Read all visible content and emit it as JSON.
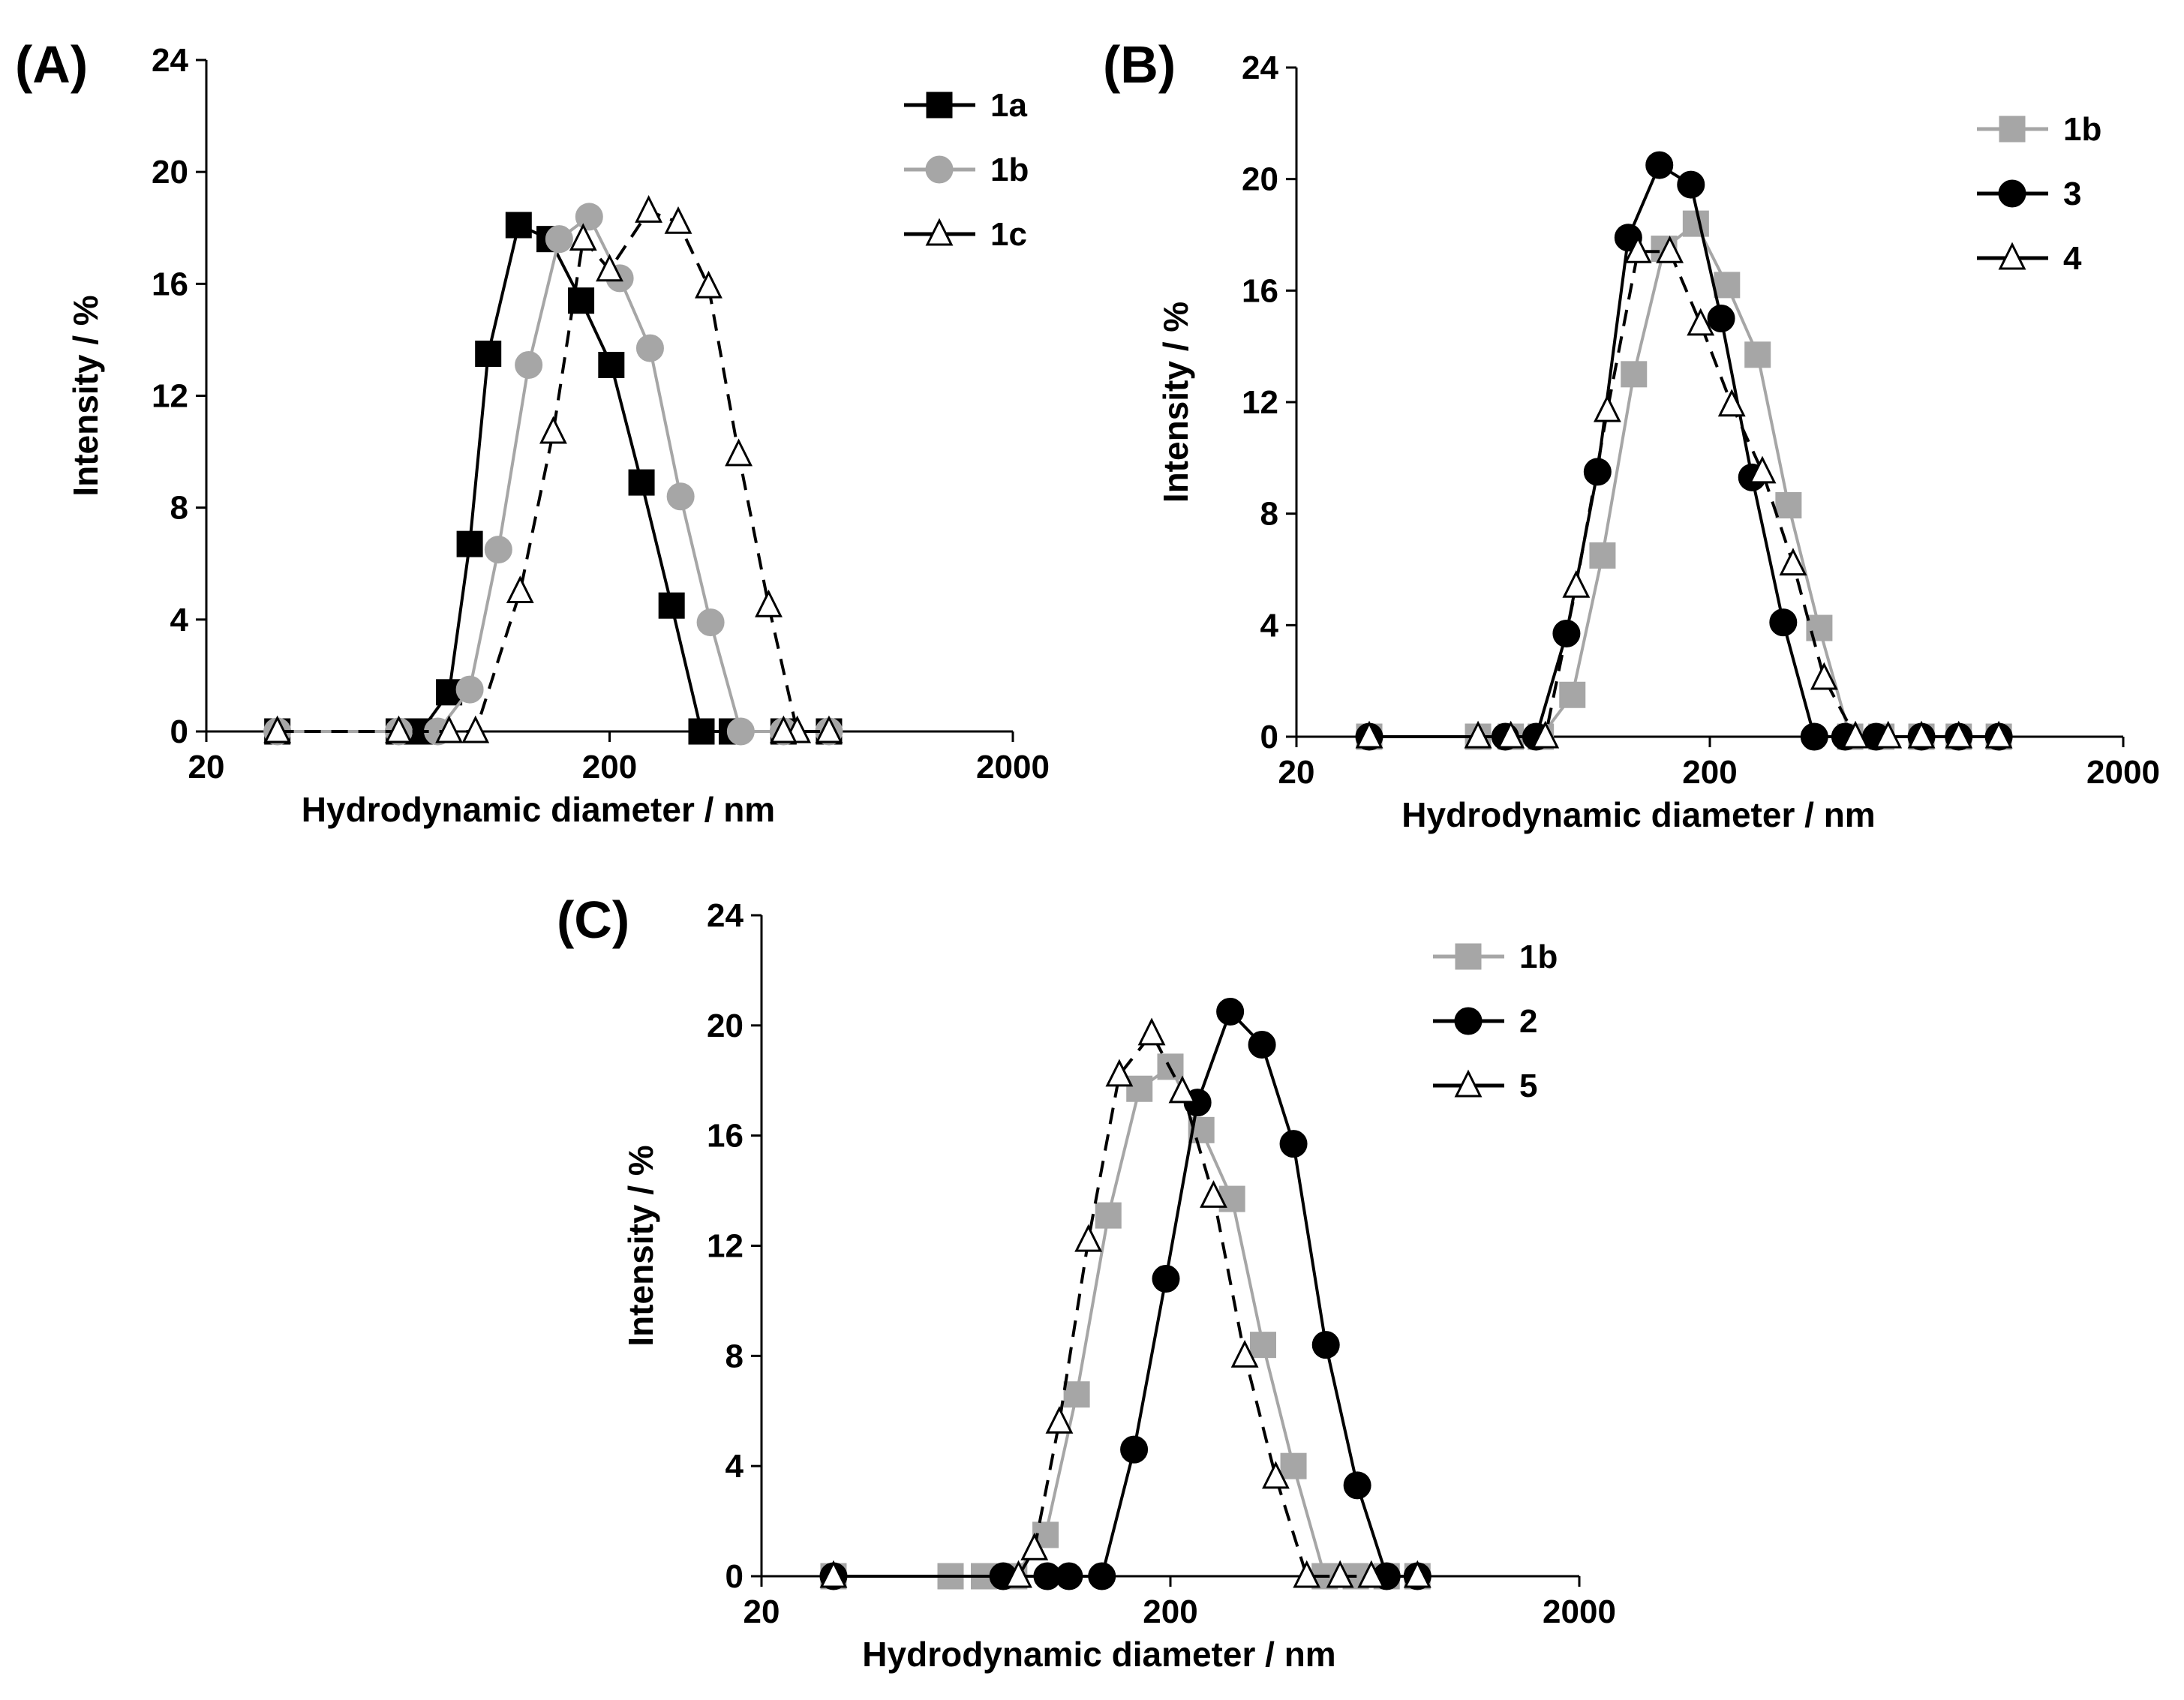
{
  "colors": {
    "black": "#000000",
    "gray": "#a6a6a6",
    "white": "#ffffff"
  },
  "chart_data": [
    {
      "panel": "(A)",
      "type": "line",
      "x_scale": "log",
      "xlabel": "Hydrodynamic  diameter  / nm",
      "ylabel": "Intensity  / %",
      "xlim": [
        20,
        2000
      ],
      "ylim": [
        0,
        24
      ],
      "x_ticks": [
        20,
        200,
        2000
      ],
      "y_ticks": [
        0,
        4,
        8,
        12,
        16,
        20,
        24
      ],
      "grid": false,
      "legend_position": "top-right",
      "series": [
        {
          "name": "1a",
          "color": "#000000",
          "marker": "square",
          "marker_fill": "#000000",
          "dash": "solid",
          "x": [
            30,
            60,
            68,
            80,
            90,
            100,
            119,
            142,
            170,
            202,
            240,
            285,
            338,
            402,
            540,
            700
          ],
          "y": [
            0,
            0,
            0,
            1.4,
            6.7,
            13.5,
            18.1,
            17.6,
            15.4,
            13.1,
            8.9,
            4.5,
            0,
            0,
            0,
            0
          ]
        },
        {
          "name": "1b",
          "color": "#a6a6a6",
          "marker": "circle",
          "marker_fill": "#a6a6a6",
          "dash": "solid",
          "x": [
            30,
            60,
            75,
            90,
            106,
            126,
            150,
            178,
            212,
            252,
            300,
            356,
            423,
            540,
            700
          ],
          "y": [
            0,
            0,
            0,
            1.5,
            6.5,
            13.1,
            17.6,
            18.4,
            16.2,
            13.7,
            8.4,
            3.9,
            0,
            0,
            0
          ]
        },
        {
          "name": "1c",
          "color": "#000000",
          "marker": "triangle",
          "marker_fill": "#ffffff",
          "dash": "dashed",
          "x": [
            30,
            60,
            80,
            93,
            120,
            145,
            172,
            200,
            250,
            296,
            352,
            418,
            496,
            584,
            540,
            700
          ],
          "y": [
            0,
            0,
            0,
            0,
            5.0,
            10.7,
            17.6,
            16.5,
            18.6,
            18.2,
            15.9,
            9.9,
            4.5,
            0,
            0,
            0
          ]
        }
      ]
    },
    {
      "panel": "(B)",
      "type": "line",
      "x_scale": "log",
      "xlabel": "Hydrodynamic  diameter  / nm",
      "ylabel": "Intensity  / %",
      "xlim": [
        20,
        2000
      ],
      "ylim": [
        0,
        24
      ],
      "x_ticks": [
        20,
        200,
        2000
      ],
      "y_ticks": [
        0,
        4,
        8,
        12,
        16,
        20,
        24
      ],
      "grid": false,
      "legend_position": "top-right",
      "series": [
        {
          "name": "1b",
          "color": "#a6a6a6",
          "marker": "square",
          "marker_fill": "#a6a6a6",
          "dash": "solid",
          "x": [
            30,
            55,
            66,
            78,
            93,
            110,
            131,
            155,
            185,
            220,
            261,
            310,
            368,
            437,
            520,
            650,
            800,
            1000
          ],
          "y": [
            0,
            0,
            0,
            0,
            1.5,
            6.5,
            13.0,
            17.5,
            18.4,
            16.2,
            13.7,
            8.3,
            3.9,
            0,
            0,
            0,
            0,
            0
          ]
        },
        {
          "name": "3",
          "color": "#000000",
          "marker": "circle",
          "marker_fill": "#000000",
          "dash": "solid",
          "x": [
            30,
            64,
            76,
            90,
            107,
            127,
            151,
            180,
            213,
            253,
            301,
            358,
            425,
            505,
            650,
            800,
            1000
          ],
          "y": [
            0,
            0,
            0,
            3.7,
            9.5,
            17.9,
            20.5,
            19.8,
            15.0,
            9.3,
            4.1,
            0,
            0,
            0,
            0,
            0,
            0
          ]
        },
        {
          "name": "4",
          "color": "#000000",
          "marker": "triangle",
          "marker_fill": "#ffffff",
          "dash": "dashed",
          "x": [
            30,
            55,
            66,
            80,
            95,
            113,
            134,
            160,
            190,
            226,
            268,
            318,
            378,
            450,
            540,
            650,
            800,
            1000
          ],
          "y": [
            0,
            0,
            0,
            0,
            5.4,
            11.7,
            17.4,
            17.4,
            14.8,
            11.9,
            9.5,
            6.2,
            2.1,
            0,
            0,
            0,
            0,
            0
          ]
        }
      ]
    },
    {
      "panel": "(C)",
      "type": "line",
      "x_scale": "log",
      "xlabel": "Hydrodynamic  diameter  / nm",
      "ylabel": "Intensity  / %",
      "xlim": [
        20,
        2000
      ],
      "ylim": [
        0,
        24
      ],
      "x_ticks": [
        20,
        200,
        2000
      ],
      "y_ticks": [
        0,
        4,
        8,
        12,
        16,
        20,
        24
      ],
      "grid": false,
      "legend_position": "top-right",
      "series": [
        {
          "name": "1b",
          "color": "#a6a6a6",
          "marker": "square",
          "marker_fill": "#a6a6a6",
          "dash": "solid",
          "x": [
            30,
            58,
            70,
            83,
            99,
            118,
            141,
            168,
            200,
            238,
            283,
            337,
            400,
            477,
            568,
            676,
            804
          ],
          "y": [
            0,
            0,
            0,
            0,
            1.5,
            6.6,
            13.1,
            17.7,
            18.5,
            16.2,
            13.7,
            8.4,
            4.0,
            0,
            0,
            0,
            0
          ]
        },
        {
          "name": "2",
          "color": "#000000",
          "marker": "circle",
          "marker_fill": "#000000",
          "dash": "solid",
          "x": [
            30,
            78,
            100,
            113,
            136,
            163,
            195,
            233,
            280,
            335,
            400,
            480,
            573,
            676,
            804
          ],
          "y": [
            0,
            0,
            0,
            0,
            0,
            4.6,
            10.8,
            17.2,
            20.5,
            19.3,
            15.7,
            8.4,
            3.3,
            0,
            0
          ]
        },
        {
          "name": "5",
          "color": "#000000",
          "marker": "triangle",
          "marker_fill": "#ffffff",
          "dash": "dashed",
          "x": [
            30,
            85,
            93,
            107,
            126,
            150,
            180,
            214,
            255,
            304,
            362,
            431,
            520,
            620,
            804
          ],
          "y": [
            0,
            0,
            1.0,
            5.6,
            12.2,
            18.2,
            19.7,
            17.6,
            13.8,
            8.0,
            3.6,
            0,
            0,
            0,
            0
          ]
        }
      ]
    }
  ]
}
